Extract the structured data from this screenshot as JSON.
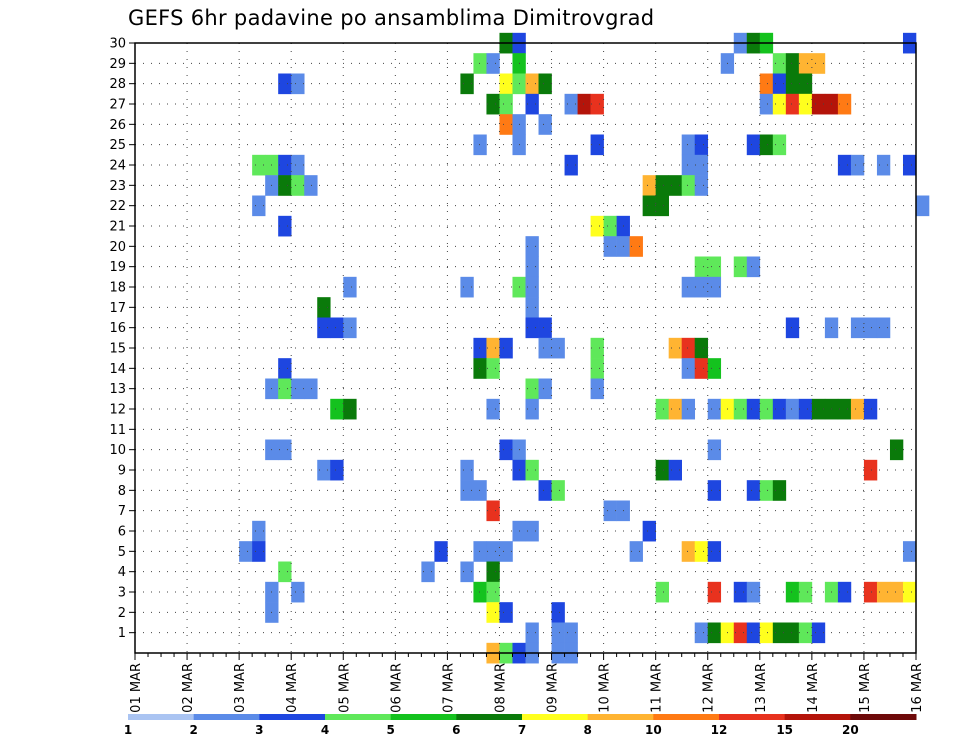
{
  "chart_data": {
    "type": "heatmap",
    "title": "GEFS 6hr padavine po ansamblima Dimitrovgrad",
    "x_tick_labels": [
      "01 MAR",
      "02 MAR",
      "03 MAR",
      "04 MAR",
      "05 MAR",
      "06 MAR",
      "07 MAR",
      "08 MAR",
      "09 MAR",
      "10 MAR",
      "11 MAR",
      "12 MAR",
      "13 MAR",
      "14 MAR",
      "15 MAR",
      "16 MAR"
    ],
    "y_tick_labels": [
      "1",
      "2",
      "3",
      "4",
      "5",
      "6",
      "7",
      "8",
      "9",
      "10",
      "11",
      "12",
      "13",
      "14",
      "15",
      "16",
      "17",
      "18",
      "19",
      "20",
      "21",
      "22",
      "23",
      "24",
      "25",
      "26",
      "27",
      "28",
      "29",
      "30"
    ],
    "x_unit": "6-hour step from 01 MAR 00Z",
    "y_unit": "ensemble member",
    "grid": true,
    "legend_labels": [
      "1",
      "2",
      "3",
      "4",
      "5",
      "6",
      "7",
      "8",
      "10",
      "12",
      "15",
      "20"
    ],
    "legend_colors": [
      "#aac4f2",
      "#5b8be8",
      "#1e46e0",
      "#5fe85a",
      "#14c21e",
      "#0a7a0a",
      "#ffff1e",
      "#ffb432",
      "#ff7a14",
      "#e8321e",
      "#b4140a",
      "#6e0a0a"
    ],
    "legend_placement": "bottom",
    "cells": [
      [
        30,
        28,
        5
      ],
      [
        30,
        29,
        2
      ],
      [
        30,
        46,
        1
      ],
      [
        30,
        47,
        5
      ],
      [
        30,
        48,
        4
      ],
      [
        30,
        59,
        2
      ],
      [
        29,
        26,
        3
      ],
      [
        29,
        27,
        1
      ],
      [
        29,
        29,
        4
      ],
      [
        29,
        45,
        1
      ],
      [
        29,
        49,
        3
      ],
      [
        29,
        50,
        5
      ],
      [
        29,
        51,
        7
      ],
      [
        29,
        52,
        7
      ],
      [
        28,
        11,
        2
      ],
      [
        28,
        12,
        1
      ],
      [
        28,
        25,
        5
      ],
      [
        28,
        28,
        6
      ],
      [
        28,
        29,
        3
      ],
      [
        28,
        30,
        7
      ],
      [
        28,
        31,
        5
      ],
      [
        28,
        48,
        8
      ],
      [
        28,
        49,
        2
      ],
      [
        28,
        50,
        5
      ],
      [
        28,
        51,
        5
      ],
      [
        27,
        27,
        5
      ],
      [
        27,
        28,
        3
      ],
      [
        27,
        30,
        2
      ],
      [
        27,
        33,
        1
      ],
      [
        27,
        34,
        10
      ],
      [
        27,
        35,
        9
      ],
      [
        27,
        48,
        1
      ],
      [
        27,
        49,
        6
      ],
      [
        27,
        50,
        9
      ],
      [
        27,
        51,
        6
      ],
      [
        27,
        52,
        10
      ],
      [
        27,
        53,
        10
      ],
      [
        27,
        54,
        8
      ],
      [
        26,
        28,
        8
      ],
      [
        26,
        29,
        1
      ],
      [
        26,
        31,
        1
      ],
      [
        25,
        26,
        1
      ],
      [
        25,
        29,
        1
      ],
      [
        25,
        35,
        2
      ],
      [
        25,
        42,
        1
      ],
      [
        25,
        43,
        2
      ],
      [
        25,
        47,
        2
      ],
      [
        25,
        48,
        5
      ],
      [
        25,
        49,
        3
      ],
      [
        24,
        9,
        3
      ],
      [
        24,
        10,
        3
      ],
      [
        24,
        11,
        2
      ],
      [
        24,
        12,
        1
      ],
      [
        24,
        33,
        2
      ],
      [
        24,
        42,
        1
      ],
      [
        24,
        43,
        1
      ],
      [
        24,
        54,
        2
      ],
      [
        24,
        55,
        1
      ],
      [
        24,
        57,
        1
      ],
      [
        24,
        59,
        2
      ],
      [
        23,
        10,
        1
      ],
      [
        23,
        11,
        5
      ],
      [
        23,
        12,
        3
      ],
      [
        23,
        13,
        1
      ],
      [
        23,
        39,
        7
      ],
      [
        23,
        40,
        5
      ],
      [
        23,
        41,
        5
      ],
      [
        23,
        42,
        3
      ],
      [
        23,
        43,
        1
      ],
      [
        22,
        9,
        1
      ],
      [
        22,
        39,
        5
      ],
      [
        22,
        40,
        5
      ],
      [
        22,
        60,
        1
      ],
      [
        21,
        11,
        2
      ],
      [
        21,
        35,
        6
      ],
      [
        21,
        36,
        3
      ],
      [
        21,
        37,
        2
      ],
      [
        20,
        30,
        1
      ],
      [
        20,
        36,
        1
      ],
      [
        20,
        37,
        1
      ],
      [
        20,
        38,
        8
      ],
      [
        19,
        30,
        1
      ],
      [
        19,
        43,
        3
      ],
      [
        19,
        44,
        3
      ],
      [
        19,
        46,
        3
      ],
      [
        19,
        47,
        1
      ],
      [
        18,
        16,
        1
      ],
      [
        18,
        25,
        1
      ],
      [
        18,
        29,
        3
      ],
      [
        18,
        30,
        1
      ],
      [
        18,
        42,
        1
      ],
      [
        18,
        43,
        1
      ],
      [
        18,
        44,
        1
      ],
      [
        17,
        14,
        5
      ],
      [
        17,
        30,
        1
      ],
      [
        16,
        14,
        2
      ],
      [
        16,
        15,
        2
      ],
      [
        16,
        16,
        1
      ],
      [
        16,
        30,
        2
      ],
      [
        16,
        31,
        2
      ],
      [
        16,
        50,
        2
      ],
      [
        16,
        53,
        1
      ],
      [
        16,
        55,
        1
      ],
      [
        16,
        56,
        1
      ],
      [
        16,
        57,
        1
      ],
      [
        15,
        31,
        1
      ],
      [
        15,
        32,
        1
      ],
      [
        15,
        26,
        2
      ],
      [
        15,
        27,
        7
      ],
      [
        15,
        28,
        2
      ],
      [
        15,
        35,
        3
      ],
      [
        15,
        41,
        7
      ],
      [
        15,
        42,
        9
      ],
      [
        15,
        43,
        5
      ],
      [
        14,
        11,
        2
      ],
      [
        14,
        26,
        5
      ],
      [
        14,
        27,
        3
      ],
      [
        14,
        35,
        3
      ],
      [
        14,
        42,
        1
      ],
      [
        14,
        43,
        9
      ],
      [
        14,
        44,
        4
      ],
      [
        13,
        10,
        1
      ],
      [
        13,
        11,
        3
      ],
      [
        13,
        12,
        1
      ],
      [
        13,
        13,
        1
      ],
      [
        13,
        30,
        3
      ],
      [
        13,
        31,
        1
      ],
      [
        13,
        35,
        1
      ],
      [
        12,
        15,
        4
      ],
      [
        12,
        16,
        5
      ],
      [
        12,
        27,
        1
      ],
      [
        12,
        30,
        1
      ],
      [
        12,
        40,
        3
      ],
      [
        12,
        41,
        7
      ],
      [
        12,
        42,
        1
      ],
      [
        12,
        44,
        1
      ],
      [
        12,
        45,
        6
      ],
      [
        12,
        46,
        3
      ],
      [
        12,
        47,
        2
      ],
      [
        12,
        48,
        3
      ],
      [
        12,
        49,
        2
      ],
      [
        12,
        50,
        1
      ],
      [
        12,
        51,
        2
      ],
      [
        12,
        52,
        5
      ],
      [
        12,
        53,
        5
      ],
      [
        12,
        54,
        5
      ],
      [
        12,
        55,
        7
      ],
      [
        12,
        56,
        2
      ],
      [
        10,
        10,
        1
      ],
      [
        10,
        11,
        1
      ],
      [
        10,
        28,
        2
      ],
      [
        10,
        29,
        1
      ],
      [
        10,
        44,
        1
      ],
      [
        10,
        58,
        5
      ],
      [
        9,
        14,
        1
      ],
      [
        9,
        15,
        2
      ],
      [
        9,
        25,
        1
      ],
      [
        9,
        29,
        2
      ],
      [
        9,
        30,
        3
      ],
      [
        9,
        40,
        5
      ],
      [
        9,
        41,
        2
      ],
      [
        9,
        56,
        9
      ],
      [
        8,
        25,
        1
      ],
      [
        8,
        26,
        1
      ],
      [
        8,
        31,
        2
      ],
      [
        8,
        32,
        3
      ],
      [
        8,
        44,
        2
      ],
      [
        8,
        47,
        2
      ],
      [
        8,
        48,
        3
      ],
      [
        8,
        49,
        5
      ],
      [
        7,
        27,
        9
      ],
      [
        7,
        36,
        1
      ],
      [
        7,
        37,
        1
      ],
      [
        6,
        9,
        1
      ],
      [
        6,
        29,
        1
      ],
      [
        6,
        30,
        1
      ],
      [
        6,
        39,
        2
      ],
      [
        5,
        8,
        1
      ],
      [
        5,
        9,
        2
      ],
      [
        5,
        23,
        2
      ],
      [
        5,
        26,
        1
      ],
      [
        5,
        27,
        1
      ],
      [
        5,
        28,
        1
      ],
      [
        5,
        38,
        1
      ],
      [
        5,
        42,
        7
      ],
      [
        5,
        43,
        6
      ],
      [
        5,
        44,
        2
      ],
      [
        5,
        59,
        1
      ],
      [
        4,
        11,
        3
      ],
      [
        4,
        22,
        1
      ],
      [
        4,
        25,
        1
      ],
      [
        4,
        27,
        5
      ],
      [
        3,
        10,
        1
      ],
      [
        3,
        12,
        1
      ],
      [
        3,
        26,
        4
      ],
      [
        3,
        27,
        3
      ],
      [
        3,
        40,
        3
      ],
      [
        3,
        44,
        9
      ],
      [
        3,
        46,
        2
      ],
      [
        3,
        47,
        1
      ],
      [
        3,
        50,
        4
      ],
      [
        3,
        51,
        3
      ],
      [
        3,
        53,
        3
      ],
      [
        3,
        54,
        2
      ],
      [
        3,
        56,
        9
      ],
      [
        3,
        57,
        7
      ],
      [
        3,
        58,
        7
      ],
      [
        3,
        59,
        6
      ],
      [
        2,
        10,
        1
      ],
      [
        2,
        27,
        6
      ],
      [
        2,
        28,
        2
      ],
      [
        2,
        32,
        2
      ],
      [
        1,
        30,
        1
      ],
      [
        1,
        32,
        1
      ],
      [
        1,
        33,
        1
      ],
      [
        1,
        43,
        1
      ],
      [
        1,
        44,
        5
      ],
      [
        1,
        45,
        6
      ],
      [
        1,
        46,
        9
      ],
      [
        1,
        47,
        2
      ],
      [
        1,
        48,
        6
      ],
      [
        1,
        49,
        5
      ],
      [
        1,
        50,
        5
      ],
      [
        1,
        51,
        3
      ],
      [
        1,
        52,
        2
      ],
      [
        0,
        27,
        7
      ],
      [
        0,
        28,
        3
      ],
      [
        0,
        29,
        2
      ],
      [
        0,
        30,
        1
      ],
      [
        0,
        32,
        1
      ],
      [
        0,
        33,
        1
      ]
    ]
  }
}
